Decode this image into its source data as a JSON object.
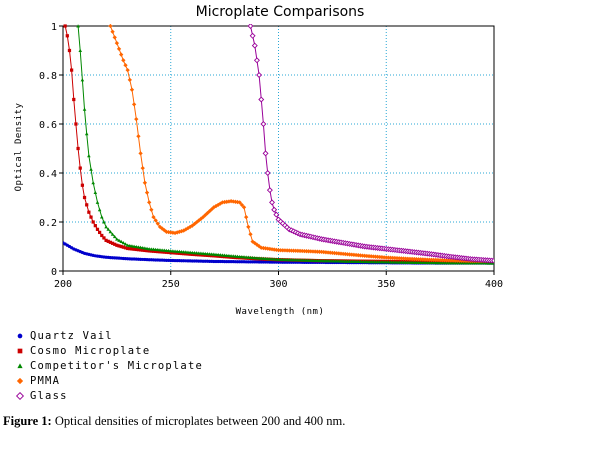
{
  "chart_data": {
    "type": "line",
    "title": "Microplate Comparisons",
    "xlabel": "Wavelength (nm)",
    "ylabel": "Optical Density",
    "xlim": [
      200,
      400
    ],
    "ylim": [
      0,
      1
    ],
    "x_ticks": [
      "200",
      "250",
      "300",
      "350",
      "400"
    ],
    "y_ticks": [
      "0",
      "0.2",
      "0.4",
      "0.6",
      "0.8",
      "1"
    ],
    "grid": true,
    "legend_position": "bottom-left",
    "series": [
      {
        "name": "Quartz Vail",
        "color": "#0000cc",
        "marker": "circle",
        "points": [
          [
            200,
            0.115
          ],
          [
            205,
            0.09
          ],
          [
            210,
            0.072
          ],
          [
            215,
            0.062
          ],
          [
            220,
            0.056
          ],
          [
            230,
            0.05
          ],
          [
            240,
            0.046
          ],
          [
            250,
            0.043
          ],
          [
            260,
            0.041
          ],
          [
            270,
            0.039
          ],
          [
            280,
            0.038
          ],
          [
            290,
            0.037
          ],
          [
            300,
            0.036
          ],
          [
            320,
            0.035
          ],
          [
            340,
            0.034
          ],
          [
            360,
            0.033
          ],
          [
            380,
            0.032
          ],
          [
            400,
            0.032
          ]
        ]
      },
      {
        "name": "Cosmo Microplate",
        "color": "#cc0000",
        "marker": "square",
        "points": [
          [
            201,
            1.0
          ],
          [
            202,
            0.96
          ],
          [
            203,
            0.9
          ],
          [
            204,
            0.82
          ],
          [
            205,
            0.7
          ],
          [
            206,
            0.6
          ],
          [
            207,
            0.5
          ],
          [
            208,
            0.42
          ],
          [
            209,
            0.35
          ],
          [
            210,
            0.3
          ],
          [
            212,
            0.24
          ],
          [
            214,
            0.2
          ],
          [
            216,
            0.17
          ],
          [
            218,
            0.145
          ],
          [
            220,
            0.125
          ],
          [
            225,
            0.105
          ],
          [
            230,
            0.092
          ],
          [
            240,
            0.082
          ],
          [
            250,
            0.075
          ],
          [
            260,
            0.068
          ],
          [
            270,
            0.062
          ],
          [
            280,
            0.055
          ],
          [
            290,
            0.05
          ],
          [
            300,
            0.046
          ],
          [
            320,
            0.042
          ],
          [
            340,
            0.04
          ],
          [
            360,
            0.038
          ],
          [
            380,
            0.037
          ],
          [
            400,
            0.036
          ]
        ]
      },
      {
        "name": "Competitor's Microplate",
        "color": "#008800",
        "marker": "triangle",
        "points": [
          [
            207,
            1.0
          ],
          [
            208,
            0.9
          ],
          [
            209,
            0.78
          ],
          [
            210,
            0.66
          ],
          [
            211,
            0.56
          ],
          [
            212,
            0.47
          ],
          [
            214,
            0.36
          ],
          [
            216,
            0.28
          ],
          [
            218,
            0.22
          ],
          [
            220,
            0.18
          ],
          [
            225,
            0.13
          ],
          [
            230,
            0.105
          ],
          [
            240,
            0.09
          ],
          [
            250,
            0.082
          ],
          [
            260,
            0.075
          ],
          [
            270,
            0.068
          ],
          [
            280,
            0.06
          ],
          [
            290,
            0.053
          ],
          [
            300,
            0.047
          ],
          [
            320,
            0.042
          ],
          [
            340,
            0.038
          ],
          [
            360,
            0.035
          ],
          [
            380,
            0.033
          ],
          [
            400,
            0.032
          ]
        ]
      },
      {
        "name": "PMMA",
        "color": "#ff6600",
        "marker": "diamond",
        "points": [
          [
            222,
            1.0
          ],
          [
            225,
            0.93
          ],
          [
            228,
            0.86
          ],
          [
            230,
            0.82
          ],
          [
            232,
            0.74
          ],
          [
            234,
            0.62
          ],
          [
            236,
            0.48
          ],
          [
            238,
            0.36
          ],
          [
            240,
            0.28
          ],
          [
            242,
            0.22
          ],
          [
            245,
            0.18
          ],
          [
            248,
            0.16
          ],
          [
            252,
            0.155
          ],
          [
            256,
            0.165
          ],
          [
            260,
            0.185
          ],
          [
            265,
            0.22
          ],
          [
            270,
            0.26
          ],
          [
            274,
            0.28
          ],
          [
            278,
            0.285
          ],
          [
            282,
            0.28
          ],
          [
            284,
            0.26
          ],
          [
            286,
            0.18
          ],
          [
            288,
            0.12
          ],
          [
            292,
            0.095
          ],
          [
            300,
            0.085
          ],
          [
            310,
            0.082
          ],
          [
            320,
            0.078
          ],
          [
            330,
            0.07
          ],
          [
            340,
            0.062
          ],
          [
            350,
            0.055
          ],
          [
            360,
            0.05
          ],
          [
            370,
            0.046
          ],
          [
            380,
            0.043
          ],
          [
            390,
            0.041
          ],
          [
            400,
            0.04
          ]
        ]
      },
      {
        "name": "Glass",
        "color": "#990099",
        "marker": "open-diamond",
        "points": [
          [
            287,
            1.0
          ],
          [
            289,
            0.92
          ],
          [
            291,
            0.8
          ],
          [
            292,
            0.7
          ],
          [
            293,
            0.6
          ],
          [
            294,
            0.48
          ],
          [
            295,
            0.4
          ],
          [
            296,
            0.33
          ],
          [
            297,
            0.28
          ],
          [
            298,
            0.25
          ],
          [
            300,
            0.21
          ],
          [
            305,
            0.17
          ],
          [
            310,
            0.15
          ],
          [
            320,
            0.13
          ],
          [
            330,
            0.115
          ],
          [
            340,
            0.1
          ],
          [
            350,
            0.09
          ],
          [
            360,
            0.08
          ],
          [
            370,
            0.07
          ],
          [
            380,
            0.058
          ],
          [
            390,
            0.048
          ],
          [
            400,
            0.042
          ]
        ]
      }
    ]
  },
  "caption": {
    "bold": "Figure 1:",
    "text": " Optical densities of microplates between 200 and 400 nm."
  }
}
